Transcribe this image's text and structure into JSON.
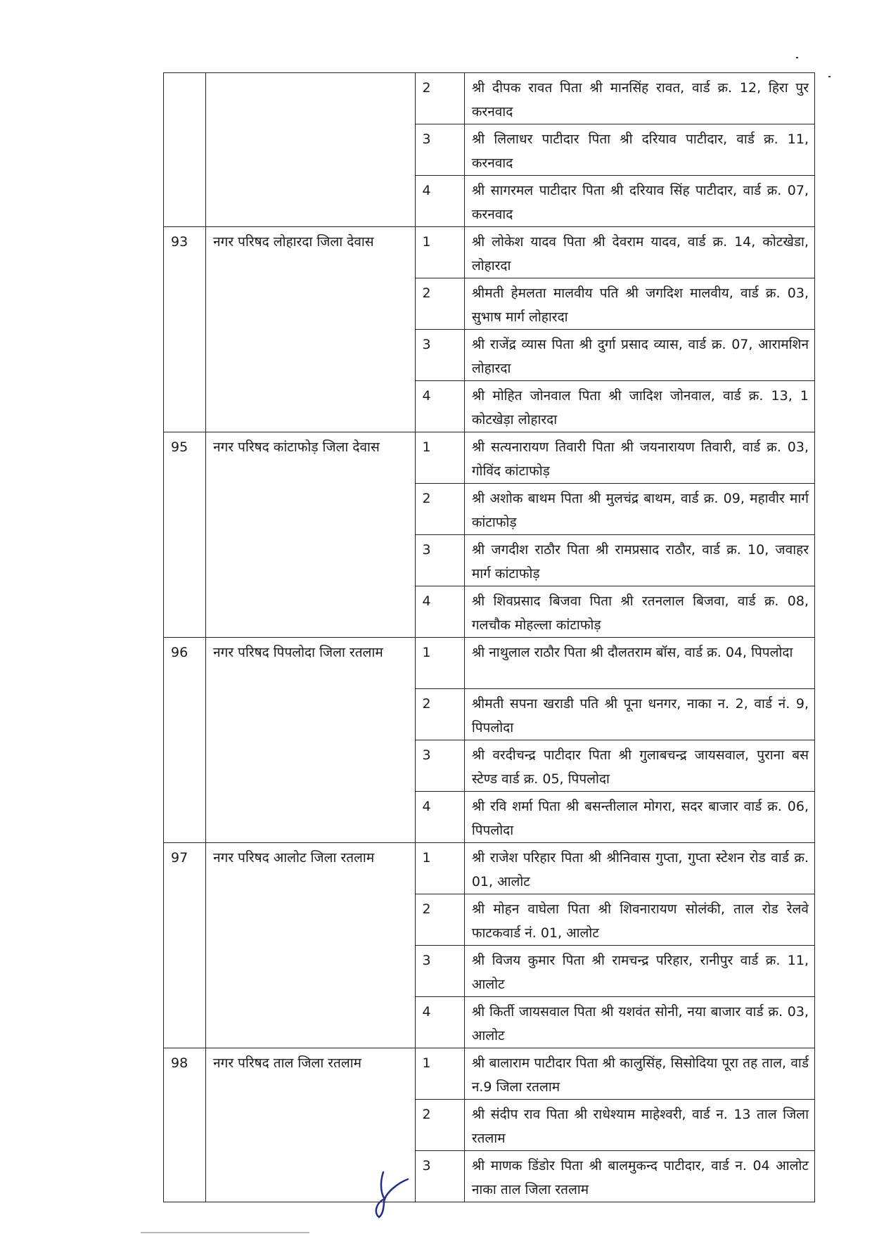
{
  "document": {
    "groups": [
      {
        "sn": "",
        "body": "",
        "members": [
          {
            "no": "2",
            "name": "श्री दीपक रावत पिता श्री मानसिंह रावत, वार्ड क्र. 12, हिरा पुर करनवाद"
          },
          {
            "no": "3",
            "name": "श्री लिलाधर पाटीदार पिता श्री दरियाव पाटीदार, वार्ड क्र. 11, करनवाद"
          },
          {
            "no": "4",
            "name": "श्री सागरमल पाटीदार पिता श्री दरियाव सिंह पाटीदार, वार्ड क्र. 07, करनवाद"
          }
        ]
      },
      {
        "sn": "93",
        "body": "नगर परिषद लोहारदा जिला देवास",
        "members": [
          {
            "no": "1",
            "name": "श्री लोकेश यादव पिता श्री देवराम यादव, वार्ड क्र. 14, कोटखेडा, लोहारदा"
          },
          {
            "no": "2",
            "name": "श्रीमती हेमलता मालवीय पति श्री जगदिश मालवीय, वार्ड क्र. 03, सुभाष मार्ग लोहारदा"
          },
          {
            "no": "3",
            "name": "श्री राजेंद्र व्यास पिता श्री दुर्गा प्रसाद व्यास, वार्ड क्र. 07, आरामशिन लोहारदा"
          },
          {
            "no": "4",
            "name": "श्री मोहित जोनवाल पिता श्री जादिश जोनवाल, वार्ड क्र. 13, 1 कोटखेड़ा लोहारदा"
          }
        ]
      },
      {
        "sn": "95",
        "body": "नगर परिषद कांटाफोड़ जिला देवास",
        "members": [
          {
            "no": "1",
            "name": "श्री सत्यनारायण तिवारी पिता श्री  जयनारायण तिवारी, वार्ड क्र. 03, गोविंद कांटाफोड़"
          },
          {
            "no": "2",
            "name": "श्री अशोक बाथम पिता श्री  मुलचंद्र बाथम, वार्ड क्र. 09, महावीर मार्ग कांटाफोड़"
          },
          {
            "no": "3",
            "name": "श्री जगदीश राठौर पिता श्री रामप्रसाद राठौर, वार्ड क्र. 10, जवाहर मार्ग कांटाफोड़"
          },
          {
            "no": "4",
            "name": "श्री शिवप्रसाद बिजवा पिता श्री रतनलाल बिजवा, वार्ड क्र. 08, गलचौक मोहल्ला कांटाफोड़"
          }
        ]
      },
      {
        "sn": "96",
        "body": "नगर परिषद पिपलोदा जिला रतलाम",
        "members": [
          {
            "no": "1",
            "name": "श्री नाथुलाल राठौर पिता श्री दौलतराम बॉस, वार्ड क्र. 04, पिपलोदा"
          },
          {
            "no": "2",
            "name": "श्रीमती सपना खराडी पति श्री पूना धनगर, नाका न. 2, वार्ड नं. 9, पिपलोदा"
          },
          {
            "no": "3",
            "name": "श्री वरदीचन्द्र पाटीदार पिता श्री गुलाबचन्द्र जायसवाल, पुराना बस स्टेण्ड वार्ड क्र. 05, पिपलोदा"
          },
          {
            "no": "4",
            "name": "श्री रवि शर्मा पिता श्री बसन्तीलाल मोगरा, सदर बाजार वार्ड क्र. 06, पिपलोदा"
          }
        ]
      },
      {
        "sn": "97",
        "body": "नगर परिषद आलोट जिला रतलाम",
        "members": [
          {
            "no": "1",
            "name": "श्री राजेश परिहार पिता श्री श्रीनिवास गुप्ता, गुप्ता स्टेशन रोड वार्ड क्र. 01, आलोट"
          },
          {
            "no": "2",
            "name": "श्री मोहन वाघेला पिता श्री शिवनारायण सोलंकी, ताल रोड रेलवे फाटकवार्ड नं. 01, आलोट"
          },
          {
            "no": "3",
            "name": "श्री विजय कुमार पिता श्री रामचन्द्र परिहार, रानीपुर वार्ड क्र. 11, आलोट"
          },
          {
            "no": "4",
            "name": "श्री किर्ती जायसवाल पिता श्री  यशवंत सोनी, नया बाजार वार्ड क्र. 03, आलोट"
          }
        ]
      },
      {
        "sn": "98",
        "body": "नगर परिषद ताल जिला रतलाम",
        "members": [
          {
            "no": "1",
            "name": "श्री बालाराम पाटीदार पिता श्री कालुसिंह, सिसोदिया पूरा तह ताल, वार्ड न.9 जिला रतलाम"
          },
          {
            "no": "2",
            "name": "श्री संदीप राव पिता श्री राधेश्याम माहेश्वरी, वार्ड न. 13 ताल जिला रतलाम"
          },
          {
            "no": "3",
            "name": "श्री माणक डिंडोर पिता श्री बालमुकन्द पाटीदार, वार्ड न. 04 आलोट नाका ताल जिला रतलाम"
          }
        ]
      }
    ],
    "signature_color": "#1f2f8a"
  }
}
